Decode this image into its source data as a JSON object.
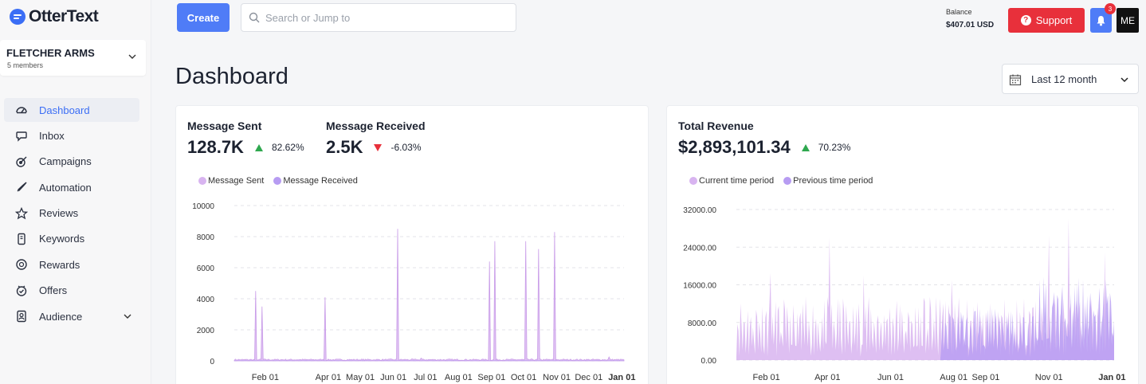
{
  "app": {
    "name": "OtterText"
  },
  "org": {
    "name": "FLETCHER ARMS",
    "members": "5 members"
  },
  "nav": {
    "items": [
      {
        "label": "Dashboard",
        "icon": "gauge-icon",
        "active": true
      },
      {
        "label": "Inbox",
        "icon": "chat-bubble-icon"
      },
      {
        "label": "Campaigns",
        "icon": "target-icon"
      },
      {
        "label": "Automation",
        "icon": "rocket-icon"
      },
      {
        "label": "Reviews",
        "icon": "star-icon"
      },
      {
        "label": "Keywords",
        "icon": "phone-icon"
      },
      {
        "label": "Rewards",
        "icon": "coin-icon"
      },
      {
        "label": "Offers",
        "icon": "badge-icon"
      },
      {
        "label": "Audience",
        "icon": "contacts-icon",
        "has_dropdown": true
      }
    ]
  },
  "topbar": {
    "create_label": "Create",
    "search_placeholder": "Search or Jump to",
    "balance_label": "Balance",
    "balance_value": "$407.01 USD",
    "support_label": "Support",
    "notification_count": "3",
    "avatar_initials": "ME"
  },
  "page": {
    "title": "Dashboard",
    "date_range": "Last 12 month"
  },
  "colors": {
    "accent": "#4f7cf7",
    "support": "#e8303b",
    "up": "#2fa84f",
    "down": "#e8303b",
    "series_light": "#d8b4f0",
    "series_dark": "#b79cf2"
  },
  "cards": {
    "messages": {
      "sent_label": "Message Sent",
      "sent_value": "128.7K",
      "sent_change": "82.62%",
      "sent_trend": "up",
      "received_label": "Message Received",
      "received_value": "2.5K",
      "received_change": "-6.03%",
      "received_trend": "down"
    },
    "revenue": {
      "label": "Total Revenue",
      "value": "$2,893,101.34",
      "change": "70.23%",
      "trend": "up"
    }
  },
  "chart_data": [
    {
      "type": "area",
      "series": [
        {
          "name": "Message Sent",
          "color": "#d8b4f0"
        },
        {
          "name": "Message Received",
          "color": "#b79cf2"
        }
      ],
      "ylim": [
        0,
        10000
      ],
      "yticks": [
        "0",
        "2000",
        "4000",
        "6000",
        "8000",
        "10000"
      ],
      "xticks": [
        "Feb 01",
        "Apr 01",
        "May 01",
        "Jun 01",
        "Jul 01",
        "Aug 01",
        "Sep 01",
        "Oct 01",
        "Nov 01",
        "Dec 01",
        "Jan 01"
      ],
      "bold_xticks": [
        "Jan 01"
      ],
      "grid": true,
      "legend_position": "top-left",
      "spikes": [
        {
          "date": "2023-01-23",
          "value": 4500
        },
        {
          "date": "2023-01-29",
          "value": 3500
        },
        {
          "date": "2023-03-29",
          "value": 4100
        },
        {
          "date": "2023-06-05",
          "value": 8500
        },
        {
          "date": "2023-08-30",
          "value": 6400
        },
        {
          "date": "2023-09-04",
          "value": 7700
        },
        {
          "date": "2023-10-03",
          "value": 7700
        },
        {
          "date": "2023-10-15",
          "value": 7200
        },
        {
          "date": "2023-10-30",
          "value": 8300
        },
        {
          "date": "2023-06-27",
          "value": 180
        },
        {
          "date": "2023-12-20",
          "value": 250
        }
      ],
      "baseline": 100
    },
    {
      "type": "area",
      "series": [
        {
          "name": "Current time period",
          "color": "#d8b4f0"
        },
        {
          "name": "Previous time period",
          "color": "#b79cf2"
        }
      ],
      "ylim": [
        0,
        32000
      ],
      "yticks": [
        "0.00",
        "8000.00",
        "16000.00",
        "24000.00",
        "32000.00"
      ],
      "xticks": [
        "Feb 01",
        "Apr 01",
        "Jun 01",
        "Aug 01",
        "Sep 01",
        "Nov 01",
        "Jan 01"
      ],
      "bold_xticks": [
        "Jan 01"
      ],
      "grid": true,
      "legend_position": "top-left",
      "current_typical": 7500,
      "current_peaks": [
        {
          "date": "2023-02-05",
          "value": 18500
        },
        {
          "date": "2023-04-03",
          "value": 26000
        },
        {
          "date": "2023-05-06",
          "value": 18000
        },
        {
          "date": "2023-07-30",
          "value": 17000
        },
        {
          "date": "2023-11-01",
          "value": 26500
        },
        {
          "date": "2023-11-20",
          "value": 30000
        },
        {
          "date": "2023-12-25",
          "value": 23000
        }
      ],
      "previous_typical": 7000,
      "previous_starts": "2023-07-20"
    }
  ]
}
